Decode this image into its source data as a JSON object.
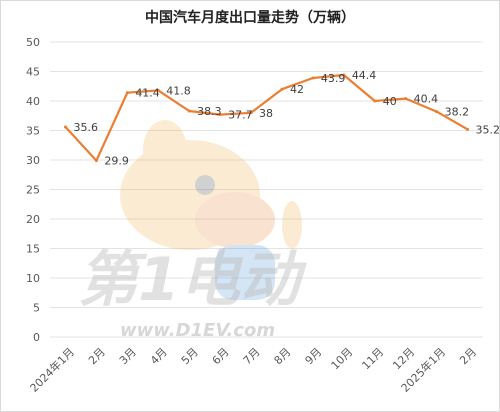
{
  "chart_data": {
    "type": "line",
    "title": "中国汽车月度出口量走势（万辆）",
    "categories": [
      "2024年1月",
      "2月",
      "3月",
      "4月",
      "5月",
      "6月",
      "7月",
      "8月",
      "9月",
      "10月",
      "11月",
      "12月",
      "2025年1月",
      "2月"
    ],
    "series": [
      {
        "values": [
          35.6,
          29.9,
          41.4,
          41.8,
          38.3,
          37.7,
          38,
          42,
          43.9,
          44.4,
          40,
          40.4,
          38.2,
          35.2
        ],
        "color": "#ED7D31"
      }
    ],
    "ylim": [
      0,
      50
    ],
    "yticks": [
      0,
      5,
      10,
      15,
      20,
      25,
      30,
      35,
      40,
      45,
      50
    ],
    "grid": true,
    "legend": "none",
    "data_labels": true
  },
  "watermark": {
    "brand": "第1电动",
    "url": "www.D1EV.com"
  },
  "colors": {
    "line": "#ED7D31",
    "grid": "#e3e3e3",
    "axis_text": "#595959",
    "watermark": "#cfcfcf"
  }
}
